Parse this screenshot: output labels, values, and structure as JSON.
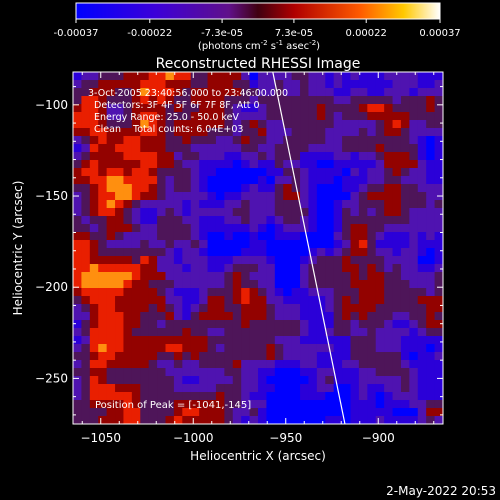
{
  "colorbar": {
    "tick_labels": [
      "-0.00037",
      "-0.00022",
      "-7.3e-05",
      "7.3e-05",
      "0.00022",
      "0.00037"
    ],
    "tick_values": [
      -0.00037,
      -0.00022,
      -7.3e-05,
      7.3e-05,
      0.00022,
      0.00037
    ],
    "range": [
      -0.00037,
      0.00037
    ],
    "units_label": "(photons cm",
    "units_sup1": "-2",
    "units_mid": " s",
    "units_sup2": "-1",
    "units_end": " asec",
    "units_sup3": "-2",
    "units_close": ")",
    "colors": [
      "#0000ff",
      "#4b0082",
      "#800000",
      "#ff0000",
      "#ffa500",
      "#ffffff"
    ]
  },
  "chart_data": {
    "type": "heatmap",
    "title": "Reconstructed RHESSI Image",
    "xlabel": "Heliocentric X (arcsec)",
    "ylabel": "Heliocentric Y (arcsec)",
    "xlim": [
      -1065,
      -865
    ],
    "ylim": [
      -275,
      -82
    ],
    "x_ticks": [
      -1050,
      -1000,
      -950,
      -900
    ],
    "x_tick_labels": [
      "−1050",
      "−1000",
      "−950",
      "−900"
    ],
    "y_ticks": [
      -100,
      -150,
      -200,
      -250
    ],
    "y_tick_labels": [
      "−100",
      "−150",
      "−200",
      "−250"
    ],
    "annotations": [
      "3-Oct-2005 23:40:56.000 to 23:46:00.000",
      "Detectors: 3F 4F 5F 6F 7F 8F, Att 0",
      "Energy Range: 25.0 - 50.0 keV",
      "Clean    Total counts: 6.04E+03"
    ],
    "peak_label": "Position of Peak = [-1041,-145]",
    "peak_position": [
      -1041,
      -145
    ],
    "limb_line": [
      [
        -957,
        -82
      ],
      [
        -918,
        -275
      ]
    ]
  },
  "footer": {
    "timestamp": "2-May-2022 20:53"
  }
}
